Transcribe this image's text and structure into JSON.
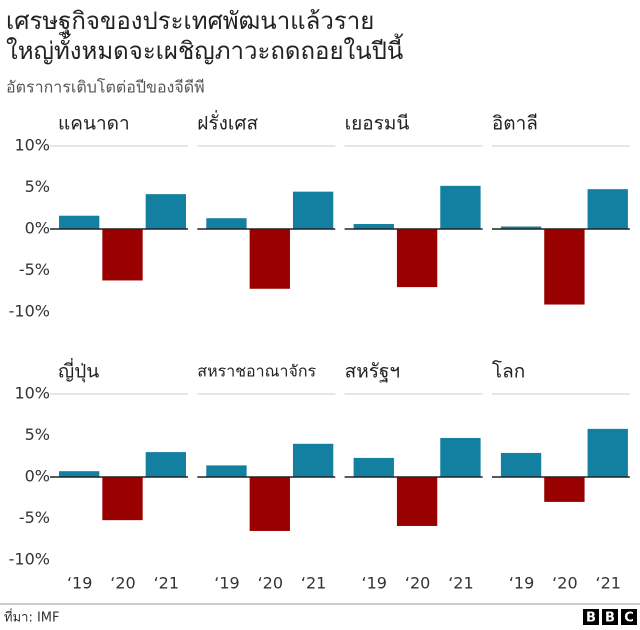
{
  "header": {
    "title_lines": [
      "เศรษฐกิจของประเทศพัฒนาแล้วราย",
      "ใหญ่ทั้งหมดจะเผชิญภาวะถดถอยในปีนี้"
    ],
    "subtitle": "อัตราการเติบโตต่อปีของจีดีพี"
  },
  "chart_data": [
    {
      "type": "bar",
      "title": "แคนาดา",
      "categories": [
        null,
        null,
        null
      ],
      "values": [
        1.6,
        -6.2,
        4.2
      ],
      "colors": [
        "#1380a1",
        "#990000",
        "#1380a1"
      ],
      "ylim": [
        -10,
        10
      ],
      "yticks": [
        {
          "value": 10,
          "label": "10%"
        },
        {
          "value": 5,
          "label": "5%"
        },
        {
          "value": 0,
          "label": "0%"
        },
        {
          "value": -5,
          "label": "-5%"
        },
        {
          "value": -10,
          "label": "-10%"
        }
      ]
    },
    {
      "type": "bar",
      "title": "ฝรั่งเศส",
      "categories": [
        null,
        null,
        null
      ],
      "values": [
        1.3,
        -7.2,
        4.5
      ],
      "colors": [
        "#1380a1",
        "#990000",
        "#1380a1"
      ],
      "ylim": [
        -10,
        10
      ]
    },
    {
      "type": "bar",
      "title": "เยอรมนี",
      "categories": [
        null,
        null,
        null
      ],
      "values": [
        0.6,
        -7.0,
        5.2
      ],
      "colors": [
        "#1380a1",
        "#990000",
        "#1380a1"
      ],
      "ylim": [
        -10,
        10
      ]
    },
    {
      "type": "bar",
      "title": "อิตาลี",
      "categories": [
        null,
        null,
        null
      ],
      "values": [
        0.3,
        -9.1,
        4.8
      ],
      "colors": [
        "#1380a1",
        "#990000",
        "#1380a1"
      ],
      "ylim": [
        -10,
        10
      ]
    },
    {
      "type": "bar",
      "title": "ญี่ปุ่น",
      "categories": [
        "‘19",
        "‘20",
        "‘21"
      ],
      "values": [
        0.7,
        -5.2,
        3.0
      ],
      "colors": [
        "#1380a1",
        "#990000",
        "#1380a1"
      ],
      "ylim": [
        -10,
        10
      ],
      "yticks": [
        {
          "value": 10,
          "label": "10%"
        },
        {
          "value": 5,
          "label": "5%"
        },
        {
          "value": 0,
          "label": "0%"
        },
        {
          "value": -5,
          "label": "-5%"
        },
        {
          "value": -10,
          "label": "-10%"
        }
      ]
    },
    {
      "type": "bar",
      "title": "สหราชอาณาจักร",
      "categories": [
        "‘19",
        "‘20",
        "‘21"
      ],
      "values": [
        1.4,
        -6.5,
        4.0
      ],
      "colors": [
        "#1380a1",
        "#990000",
        "#1380a1"
      ],
      "ylim": [
        -10,
        10
      ]
    },
    {
      "type": "bar",
      "title": "สหรัฐฯ",
      "categories": [
        "‘19",
        "‘20",
        "‘21"
      ],
      "values": [
        2.3,
        -5.9,
        4.7
      ],
      "colors": [
        "#1380a1",
        "#990000",
        "#1380a1"
      ],
      "ylim": [
        -10,
        10
      ]
    },
    {
      "type": "bar",
      "title": "โลก",
      "categories": [
        "‘19",
        "‘20",
        "‘21"
      ],
      "values": [
        2.9,
        -3.0,
        5.8
      ],
      "colors": [
        "#1380a1",
        "#990000",
        "#1380a1"
      ],
      "ylim": [
        -10,
        10
      ]
    }
  ],
  "footer": {
    "source": "ที่มา: IMF",
    "logo": [
      "B",
      "B",
      "C"
    ]
  }
}
